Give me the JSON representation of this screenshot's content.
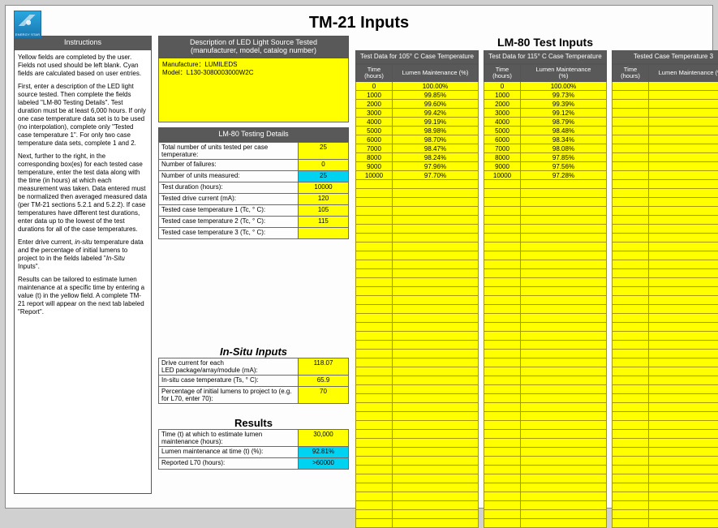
{
  "title": "TM-21 Inputs",
  "logo_text": "ENERGY STAR",
  "instructions": {
    "header": "Instructions",
    "p1": "Yellow fields are completed by the user. Fields not used should be left blank. Cyan fields are calculated based on user entries.",
    "p2": "First, enter a description of the LED light source tested.  Then complete the fields labeled \"LM-80 Testing Details\".  Test duration must be at least 6,000 hours.  If only one case temperature data set is to be used (no interpolation), complete only \"Tested case temperature 1\".  For only two case temperature data sets, complete 1 and 2.",
    "p3": "Next, further to the right, in the corresponding box(es) for each tested case temperature, enter the test data along with the time (in hours) at which each measurement was taken.  Data entered must be normalized then averaged measured data (per TM-21 sections 5.2.1 and 5.2.2). If case temperatures have different test durations, enter data up to the lowest of the test durations for all of the case temperatures.",
    "p4a": "Enter drive current, ",
    "p4b": " temperature data and the percentage of initial lumens to project to in the fields labeled \"",
    "p4i1": "in-situ",
    "p4i2": "In-Situ",
    "p4c": " Inputs\".",
    "p5": "Results can be tailored to estimate lumen maintenance at a specific time by entering a value (t) in the yellow field. A complete TM-21 report will appear on the next tab labeled \"Report\"."
  },
  "description": {
    "header": "Description of LED Light Source Tested\n(manufacturer, model, catalog number)",
    "line1": "Manufacture：LUMILEDS",
    "line2": "Model：L130-3080003000W2C"
  },
  "lm80details": {
    "header": "LM-80 Testing Details",
    "rows": [
      {
        "label": "Total number of units tested per case temperature:",
        "val": "25",
        "cls": "yellow"
      },
      {
        "label": "Number of failures:",
        "val": "0",
        "cls": "yellow"
      },
      {
        "label": "Number of units measured:",
        "val": "25",
        "cls": "cyan"
      },
      {
        "label": "Test duration (hours):",
        "val": "10000",
        "cls": "yellow"
      },
      {
        "label": "Tested drive current (mA):",
        "val": "120",
        "cls": "yellow"
      },
      {
        "label": "Tested case temperature 1 (Tc, ° C):",
        "val": "105",
        "cls": "yellow"
      },
      {
        "label": "Tested case temperature 2 (Tc, ° C):",
        "val": "115",
        "cls": "yellow"
      },
      {
        "label": "Tested case temperature 3 (Tc, ° C):",
        "val": "",
        "cls": "yellow"
      }
    ]
  },
  "insitu": {
    "title": "In-Situ  Inputs",
    "rows": [
      {
        "label": "Drive current for each\nLED package/array/module (mA):",
        "val": "118.07",
        "cls": "yellow"
      },
      {
        "label": "In-situ case temperature (Ts, ° C):",
        "val": "65.9",
        "cls": "yellow"
      },
      {
        "label": "Percentage of initial lumens to project to (e.g. for L70, enter 70):",
        "val": "70",
        "cls": "yellow"
      }
    ]
  },
  "results": {
    "title": "Results",
    "rows": [
      {
        "label": "Time (t) at which to estimate lumen maintenance (hours):",
        "val": "30,000",
        "cls": "yellow"
      },
      {
        "label": "Lumen maintenance at time (t) (%):",
        "val": "92.81%",
        "cls": "cyan"
      },
      {
        "label": "Reported L70 (hours):",
        "val": ">60000",
        "cls": "cyan"
      }
    ]
  },
  "lm80inputs": {
    "main": "LM-80 Test Inputs",
    "time_hdr": "Time\n(hours)",
    "lm_hdr": "Lumen Maintenance (%)",
    "lm_hdr2": "Lumen Maintenance\n(%)",
    "cases": [
      {
        "title": "Test Data for 105° C Case Temperature",
        "rows": [
          [
            "0",
            "100.00%"
          ],
          [
            "1000",
            "99.85%"
          ],
          [
            "2000",
            "99.60%"
          ],
          [
            "3000",
            "99.42%"
          ],
          [
            "4000",
            "99.19%"
          ],
          [
            "5000",
            "98.98%"
          ],
          [
            "6000",
            "98.70%"
          ],
          [
            "7000",
            "98.47%"
          ],
          [
            "8000",
            "98.24%"
          ],
          [
            "9000",
            "97.96%"
          ],
          [
            "10000",
            "97.70%"
          ]
        ]
      },
      {
        "title": "Test Data for 115° C Case Temperature",
        "rows": [
          [
            "0",
            "100.00%"
          ],
          [
            "1000",
            "99.73%"
          ],
          [
            "2000",
            "99.39%"
          ],
          [
            "3000",
            "99.12%"
          ],
          [
            "4000",
            "98.79%"
          ],
          [
            "5000",
            "98.48%"
          ],
          [
            "6000",
            "98.34%"
          ],
          [
            "7000",
            "98.08%"
          ],
          [
            "8000",
            "97.85%"
          ],
          [
            "9000",
            "97.56%"
          ],
          [
            "10000",
            "97.28%"
          ]
        ]
      },
      {
        "title": "Tested Case Temperature 3",
        "rows": []
      }
    ],
    "empty_extra_rows": 39
  },
  "colors": {
    "yellow": "#ffff00",
    "cyan": "#00d3f2",
    "hdr": "#595959"
  }
}
